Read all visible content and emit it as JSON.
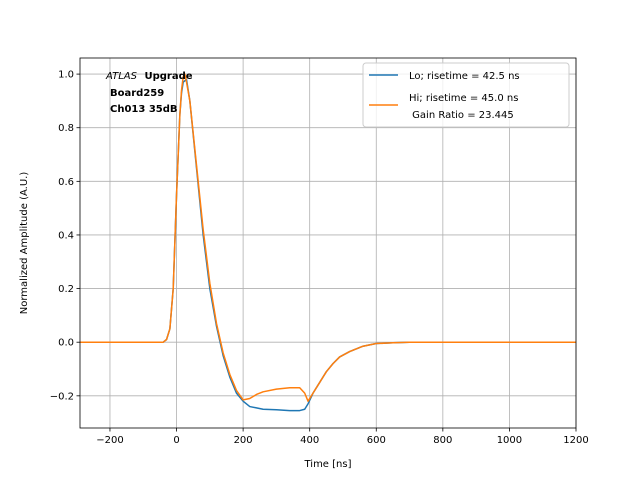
{
  "chart_data": {
    "type": "line",
    "xlabel": "Time [ns]",
    "ylabel": "Normalized Amplitude (A.U.)",
    "xlim": [
      -290,
      1200
    ],
    "ylim": [
      -0.32,
      1.06
    ],
    "xticks": [
      -200,
      0,
      200,
      400,
      600,
      800,
      1000,
      1200
    ],
    "yticks": [
      -0.2,
      0.0,
      0.2,
      0.4,
      0.6,
      0.8,
      1.0
    ],
    "xtick_labels": [
      "−200",
      "0",
      "200",
      "400",
      "600",
      "800",
      "1000",
      "1200"
    ],
    "ytick_labels": [
      "−0.2",
      "0.0",
      "0.2",
      "0.4",
      "0.6",
      "0.8",
      "1.0"
    ],
    "grid": true,
    "legend_position": "top-right",
    "annotation": {
      "italic": "ATLAS",
      "bold": "Upgrade",
      "line2": "Board259",
      "line3": "Ch013 35dB"
    },
    "series": [
      {
        "name": "Lo; risetime = 42.5 ns",
        "color": "#1f77b4",
        "x": [
          -290,
          -40,
          -30,
          -20,
          -10,
          0,
          10,
          15,
          20,
          30,
          40,
          60,
          80,
          100,
          120,
          140,
          160,
          180,
          200,
          220,
          240,
          260,
          300,
          340,
          370,
          385,
          395,
          410,
          430,
          450,
          470,
          490,
          520,
          560,
          600,
          650,
          700,
          1200
        ],
        "y": [
          0.0,
          0.0,
          0.01,
          0.05,
          0.2,
          0.55,
          0.85,
          0.93,
          0.97,
          0.98,
          0.9,
          0.65,
          0.4,
          0.2,
          0.06,
          -0.05,
          -0.13,
          -0.19,
          -0.22,
          -0.24,
          -0.245,
          -0.25,
          -0.252,
          -0.255,
          -0.255,
          -0.25,
          -0.23,
          -0.19,
          -0.15,
          -0.11,
          -0.08,
          -0.055,
          -0.035,
          -0.015,
          -0.005,
          -0.002,
          0.0,
          0.0
        ]
      },
      {
        "name": "Hi; risetime = 45.0 ns",
        "name2": " Gain Ratio = 23.445",
        "color": "#ff7f0e",
        "x": [
          -290,
          -40,
          -30,
          -20,
          -10,
          0,
          10,
          15,
          20,
          25,
          30,
          40,
          60,
          80,
          100,
          120,
          140,
          160,
          180,
          200,
          220,
          240,
          260,
          300,
          340,
          370,
          385,
          395,
          410,
          430,
          450,
          470,
          490,
          520,
          560,
          600,
          650,
          700,
          1200
        ],
        "y": [
          0.0,
          0.0,
          0.01,
          0.05,
          0.2,
          0.55,
          0.85,
          0.94,
          0.99,
          1.0,
          0.97,
          0.9,
          0.66,
          0.42,
          0.22,
          0.07,
          -0.04,
          -0.12,
          -0.18,
          -0.215,
          -0.21,
          -0.195,
          -0.185,
          -0.175,
          -0.17,
          -0.17,
          -0.19,
          -0.22,
          -0.19,
          -0.15,
          -0.11,
          -0.08,
          -0.055,
          -0.035,
          -0.015,
          -0.005,
          -0.002,
          0.0,
          0.0
        ]
      }
    ]
  }
}
